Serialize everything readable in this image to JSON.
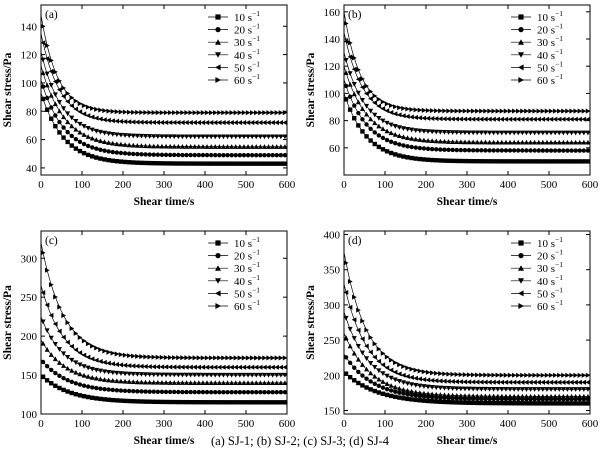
{
  "caption": "(a) SJ-1; (b) SJ-2; (c) SJ-3; (d) SJ-4",
  "legend_unit": "s",
  "legend_unit_exp": "−1",
  "chart_data": [
    {
      "type": "line",
      "panel": "(a)",
      "xlabel": "Shear time/s",
      "ylabel": "Shear stress/Pa",
      "xlim": [
        0,
        600
      ],
      "ylim": [
        35,
        155
      ],
      "xticks": [
        0,
        100,
        200,
        300,
        400,
        500,
        600
      ],
      "yticks": [
        40,
        60,
        80,
        100,
        120,
        140
      ],
      "legend": "top-right",
      "series": [
        {
          "name": "10",
          "marker": "square",
          "y0": 93,
          "yinf": 43,
          "tau": 55
        },
        {
          "name": "20",
          "marker": "circle",
          "y0": 102,
          "yinf": 49,
          "tau": 55
        },
        {
          "name": "30",
          "marker": "triangle-up",
          "y0": 112,
          "yinf": 55,
          "tau": 55
        },
        {
          "name": "40",
          "marker": "triangle-down",
          "y0": 122,
          "yinf": 62,
          "tau": 50
        },
        {
          "name": "50",
          "marker": "triangle-left",
          "y0": 135,
          "yinf": 72,
          "tau": 45
        },
        {
          "name": "60",
          "marker": "triangle-right",
          "y0": 148,
          "yinf": 79,
          "tau": 40
        }
      ]
    },
    {
      "type": "line",
      "panel": "(b)",
      "xlabel": "Shear time/s",
      "ylabel": "Shear stress/Pa",
      "xlim": [
        0,
        600
      ],
      "ylim": [
        40,
        165
      ],
      "xticks": [
        0,
        100,
        200,
        300,
        400,
        500,
        600
      ],
      "yticks": [
        60,
        80,
        100,
        120,
        140,
        160
      ],
      "legend": "top-right",
      "series": [
        {
          "name": "10",
          "marker": "square",
          "y0": 100,
          "yinf": 50,
          "tau": 55
        },
        {
          "name": "20",
          "marker": "circle",
          "y0": 110,
          "yinf": 58,
          "tau": 55
        },
        {
          "name": "30",
          "marker": "triangle-up",
          "y0": 120,
          "yinf": 64,
          "tau": 55
        },
        {
          "name": "40",
          "marker": "triangle-down",
          "y0": 130,
          "yinf": 71,
          "tau": 50
        },
        {
          "name": "50",
          "marker": "triangle-left",
          "y0": 145,
          "yinf": 81,
          "tau": 45
        },
        {
          "name": "60",
          "marker": "triangle-right",
          "y0": 160,
          "yinf": 87,
          "tau": 40
        }
      ]
    },
    {
      "type": "line",
      "panel": "(c)",
      "xlabel": "Shear time/s",
      "ylabel": "Shear stress/Pa",
      "xlim": [
        0,
        600
      ],
      "ylim": [
        100,
        335
      ],
      "xticks": [
        0,
        100,
        200,
        300,
        400,
        500,
        600
      ],
      "yticks": [
        100,
        150,
        200,
        250,
        300
      ],
      "legend": "top-right",
      "series": [
        {
          "name": "10",
          "marker": "square",
          "y0": 150,
          "yinf": 115,
          "tau": 70
        },
        {
          "name": "20",
          "marker": "circle",
          "y0": 170,
          "yinf": 128,
          "tau": 65
        },
        {
          "name": "30",
          "marker": "triangle-up",
          "y0": 195,
          "yinf": 140,
          "tau": 60
        },
        {
          "name": "40",
          "marker": "triangle-down",
          "y0": 225,
          "yinf": 150,
          "tau": 55
        },
        {
          "name": "50",
          "marker": "triangle-left",
          "y0": 265,
          "yinf": 160,
          "tau": 55
        },
        {
          "name": "60",
          "marker": "triangle-right",
          "y0": 320,
          "yinf": 172,
          "tau": 55
        }
      ]
    },
    {
      "type": "line",
      "panel": "(d)",
      "xlabel": "Shear time/s",
      "ylabel": "Shear stress/Pa",
      "xlim": [
        0,
        600
      ],
      "ylim": [
        145,
        405
      ],
      "xticks": [
        0,
        100,
        200,
        300,
        400,
        500,
        600
      ],
      "yticks": [
        150,
        200,
        250,
        300,
        350,
        400
      ],
      "legend": "top-right",
      "series": [
        {
          "name": "10",
          "marker": "square",
          "y0": 205,
          "yinf": 160,
          "tau": 80
        },
        {
          "name": "20",
          "marker": "circle",
          "y0": 230,
          "yinf": 166,
          "tau": 70
        },
        {
          "name": "30",
          "marker": "triangle-up",
          "y0": 260,
          "yinf": 170,
          "tau": 65
        },
        {
          "name": "40",
          "marker": "triangle-down",
          "y0": 290,
          "yinf": 180,
          "tau": 60
        },
        {
          "name": "50",
          "marker": "triangle-left",
          "y0": 330,
          "yinf": 190,
          "tau": 55
        },
        {
          "name": "60",
          "marker": "triangle-right",
          "y0": 375,
          "yinf": 200,
          "tau": 55
        }
      ]
    }
  ]
}
